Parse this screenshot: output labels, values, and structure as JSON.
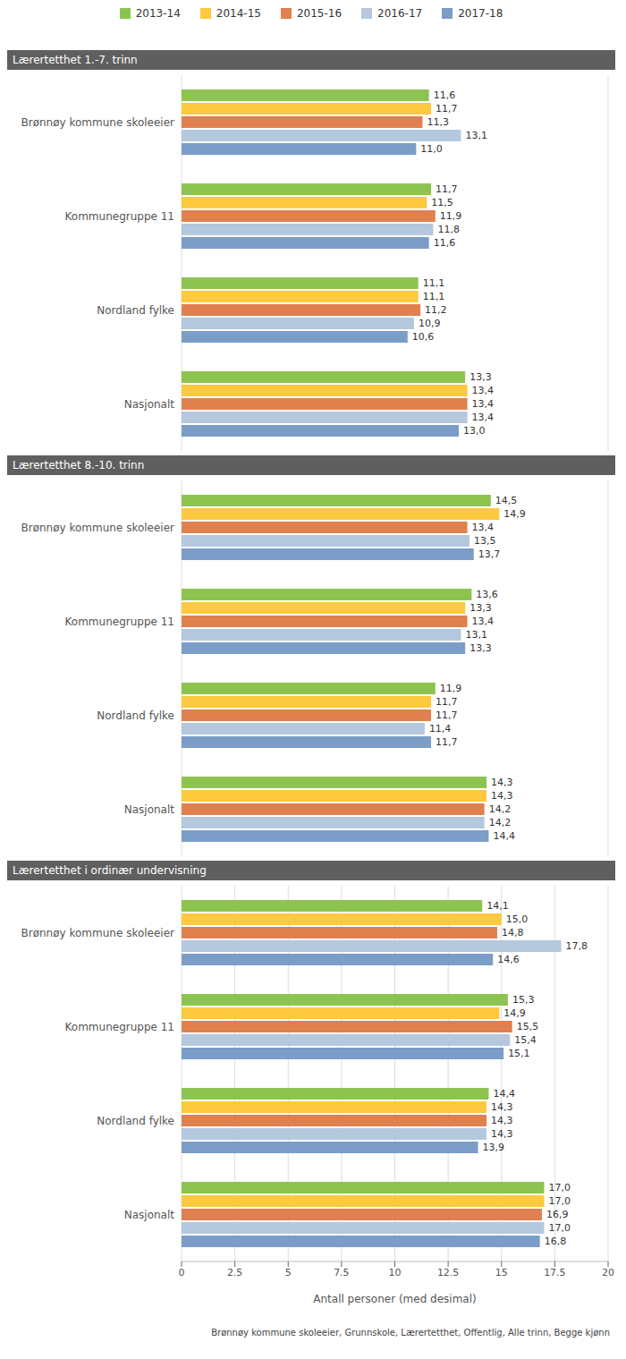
{
  "chart_data": [
    {
      "type": "bar",
      "title": "Lærertetthet 1.-7. trinn",
      "orientation": "horizontal",
      "grid": true,
      "data_labels": true,
      "legend": "top",
      "tick_labels": "y",
      "categories": [
        "Brønnøy kommune skoleeier",
        "Kommunegruppe 11",
        "Nordland fylke",
        "Nasjonalt"
      ],
      "xlim": [
        0,
        20
      ],
      "xticks": [
        0,
        2.5,
        5,
        7.5,
        10,
        12.5,
        15,
        17.5,
        20
      ],
      "series": [
        {
          "name": "2013-14",
          "color": "#8dc450",
          "values": [
            11.6,
            11.7,
            11.1,
            13.3
          ],
          "value_labels": [
            "11,6",
            "11,7",
            "11,1",
            "13,3"
          ]
        },
        {
          "name": "2014-15",
          "color": "#fcc93f",
          "values": [
            11.7,
            11.5,
            11.1,
            13.4
          ],
          "value_labels": [
            "11,7",
            "11,5",
            "11,1",
            "13,4"
          ]
        },
        {
          "name": "2015-16",
          "color": "#e0804f",
          "values": [
            11.3,
            11.9,
            11.2,
            13.4
          ],
          "value_labels": [
            "11,3",
            "11,9",
            "11,2",
            "13,4"
          ]
        },
        {
          "name": "2016-17",
          "color": "#b4c8de",
          "values": [
            13.1,
            11.8,
            10.9,
            13.4
          ],
          "value_labels": [
            "13,1",
            "11,8",
            "10,9",
            "13,4"
          ]
        },
        {
          "name": "2017-18",
          "color": "#7b9dc7",
          "values": [
            11.0,
            11.6,
            10.6,
            13.0
          ],
          "value_labels": [
            "11,0",
            "11,6",
            "10,6",
            "13,0"
          ]
        }
      ]
    },
    {
      "type": "bar",
      "title": "Lærertetthet 8.-10. trinn",
      "orientation": "horizontal",
      "grid": true,
      "data_labels": true,
      "tick_labels": "y",
      "categories": [
        "Brønnøy kommune skoleeier",
        "Kommunegruppe 11",
        "Nordland fylke",
        "Nasjonalt"
      ],
      "xlim": [
        0,
        20
      ],
      "xticks": [
        0,
        2.5,
        5,
        7.5,
        10,
        12.5,
        15,
        17.5,
        20
      ],
      "series": [
        {
          "name": "2013-14",
          "color": "#8dc450",
          "values": [
            14.5,
            13.6,
            11.9,
            14.3
          ],
          "value_labels": [
            "14,5",
            "13,6",
            "11,9",
            "14,3"
          ]
        },
        {
          "name": "2014-15",
          "color": "#fcc93f",
          "values": [
            14.9,
            13.3,
            11.7,
            14.3
          ],
          "value_labels": [
            "14,9",
            "13,3",
            "11,7",
            "14,3"
          ]
        },
        {
          "name": "2015-16",
          "color": "#e0804f",
          "values": [
            13.4,
            13.4,
            11.7,
            14.2
          ],
          "value_labels": [
            "13,4",
            "13,4",
            "11,7",
            "14,2"
          ]
        },
        {
          "name": "2016-17",
          "color": "#b4c8de",
          "values": [
            13.5,
            13.1,
            11.4,
            14.2
          ],
          "value_labels": [
            "13,5",
            "13,1",
            "11,4",
            "14,2"
          ]
        },
        {
          "name": "2017-18",
          "color": "#7b9dc7",
          "values": [
            13.7,
            13.3,
            11.7,
            14.4
          ],
          "value_labels": [
            "13,7",
            "13,3",
            "11,7",
            "14,4"
          ]
        }
      ]
    },
    {
      "type": "bar",
      "title": "Lærertetthet i ordinær undervisning",
      "orientation": "horizontal",
      "grid": true,
      "data_labels": true,
      "categories": [
        "Brønnøy kommune skoleeier",
        "Kommunegruppe 11",
        "Nordland fylke",
        "Nasjonalt"
      ],
      "xlim": [
        0,
        20
      ],
      "xticks": [
        0,
        2.5,
        5,
        7.5,
        10,
        12.5,
        15,
        17.5,
        20
      ],
      "xlabel": "Antall personer (med desimal)",
      "caption": "Brønnøy kommune skoleeier, Grunnskole, Lærertetthet, Offentlig, Alle trinn, Begge kjønn",
      "series": [
        {
          "name": "2013-14",
          "color": "#8dc450",
          "values": [
            14.1,
            15.3,
            14.4,
            17.0
          ],
          "value_labels": [
            "14,1",
            "15,3",
            "14,4",
            "17,0"
          ]
        },
        {
          "name": "2014-15",
          "color": "#fcc93f",
          "values": [
            15.0,
            14.9,
            14.3,
            17.0
          ],
          "value_labels": [
            "15,0",
            "14,9",
            "14,3",
            "17,0"
          ]
        },
        {
          "name": "2015-16",
          "color": "#e0804f",
          "values": [
            14.8,
            15.5,
            14.3,
            16.9
          ],
          "value_labels": [
            "14,8",
            "15,5",
            "14,3",
            "16,9"
          ]
        },
        {
          "name": "2016-17",
          "color": "#b4c8de",
          "values": [
            17.8,
            15.4,
            14.3,
            17.0
          ],
          "value_labels": [
            "17,8",
            "15,4",
            "14,3",
            "17,0"
          ]
        },
        {
          "name": "2017-18",
          "color": "#7b9dc7",
          "values": [
            14.6,
            15.1,
            13.9,
            16.8
          ],
          "value_labels": [
            "14,6",
            "15,1",
            "13,9",
            "16,8"
          ]
        }
      ]
    }
  ]
}
